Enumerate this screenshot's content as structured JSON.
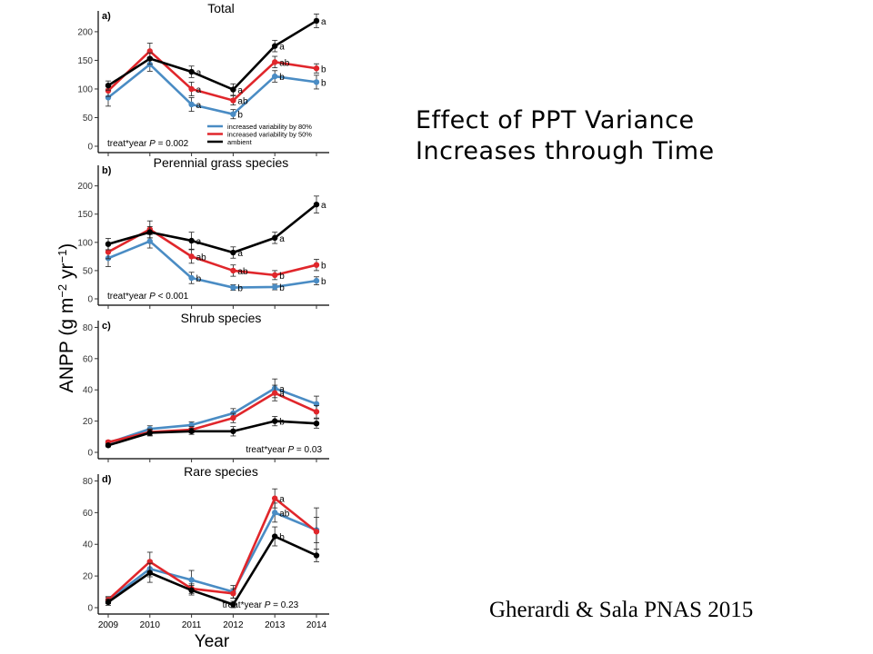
{
  "slide": {
    "title_lines": [
      "Effect of PPT Variance",
      "Increases through Time"
    ],
    "citation": "Gherardi & Sala PNAS 2015"
  },
  "figure": {
    "ylabel": "ANPP (g m",
    "ylabel_sup1": "−2",
    "ylabel_mid": " yr",
    "ylabel_sup2": "−1",
    "ylabel_end": ")",
    "xlabel": "Year"
  },
  "colors": {
    "increased_80": "#4a8cc4",
    "increased_50": "#e0262b",
    "ambient": "#000000"
  },
  "chart_data": [
    {
      "type": "line",
      "panel": "a)",
      "title": "Total",
      "x": [
        2009,
        2010,
        2011,
        2012,
        2013,
        2014
      ],
      "ylim": [
        0,
        230
      ],
      "yticks": [
        0,
        50,
        100,
        150,
        200
      ],
      "show_x_ticklabels": false,
      "stat_prefix": "treat*year ",
      "stat_p": "P",
      "stat_rest": " = 0.002",
      "stat_pos": "bottom-left",
      "legend": {
        "position": "bottom-right",
        "entries": [
          {
            "label": "increased variability by 80%",
            "color": "#4a8cc4"
          },
          {
            "label": "increased variability by 50%",
            "color": "#e0262b"
          },
          {
            "label": "ambient",
            "color": "#000000"
          }
        ]
      },
      "series": [
        {
          "key": "increased_80",
          "values": [
            85,
            143,
            73,
            56,
            122,
            112
          ],
          "err": [
            15,
            12,
            12,
            8,
            10,
            12
          ],
          "letters": [
            "",
            "",
            "a",
            "b",
            "b",
            "b"
          ]
        },
        {
          "key": "increased_50",
          "values": [
            97,
            166,
            100,
            80,
            147,
            136
          ],
          "err": [
            10,
            14,
            12,
            8,
            10,
            8
          ],
          "letters": [
            "",
            "",
            "a",
            "ab",
            "ab",
            "b"
          ]
        },
        {
          "key": "ambient",
          "values": [
            106,
            153,
            130,
            99,
            175,
            219
          ],
          "err": [
            8,
            10,
            10,
            10,
            10,
            12
          ],
          "letters": [
            "",
            "",
            "a",
            "a",
            "a",
            "a"
          ]
        }
      ]
    },
    {
      "type": "line",
      "panel": "b)",
      "title": "Perennial grass species",
      "x": [
        2009,
        2010,
        2011,
        2012,
        2013,
        2014
      ],
      "ylim": [
        0,
        230
      ],
      "yticks": [
        0,
        50,
        100,
        150,
        200
      ],
      "show_x_ticklabels": false,
      "stat_prefix": "treat*year ",
      "stat_p": "P",
      "stat_rest": " < 0.001",
      "stat_pos": "bottom-left",
      "series": [
        {
          "key": "increased_80",
          "values": [
            72,
            102,
            37,
            20,
            21,
            32
          ],
          "err": [
            15,
            12,
            10,
            5,
            5,
            7
          ],
          "letters": [
            "",
            "",
            "b",
            "b",
            "b",
            "b"
          ]
        },
        {
          "key": "increased_50",
          "values": [
            83,
            123,
            75,
            50,
            42,
            60
          ],
          "err": [
            12,
            15,
            12,
            10,
            8,
            10
          ],
          "letters": [
            "",
            "",
            "ab",
            "ab",
            "b",
            "b"
          ]
        },
        {
          "key": "ambient",
          "values": [
            97,
            118,
            103,
            82,
            108,
            167
          ],
          "err": [
            10,
            10,
            15,
            10,
            10,
            15
          ],
          "letters": [
            "",
            "",
            "a",
            "a",
            "a",
            "a"
          ]
        }
      ]
    },
    {
      "type": "line",
      "panel": "c)",
      "title": "Shrub species",
      "x": [
        2009,
        2010,
        2011,
        2012,
        2013,
        2014
      ],
      "ylim": [
        0,
        82
      ],
      "yticks": [
        0,
        20,
        40,
        60,
        80
      ],
      "show_x_ticklabels": false,
      "stat_prefix": "treat*year ",
      "stat_p": "P",
      "stat_rest": " = 0.03",
      "stat_pos": "bottom-right",
      "series": [
        {
          "key": "increased_80",
          "values": [
            6,
            15,
            17.5,
            25,
            41,
            31
          ],
          "err": [
            1,
            2,
            2,
            3,
            6,
            5
          ],
          "letters": [
            "",
            "",
            "",
            "",
            "a",
            ""
          ]
        },
        {
          "key": "increased_50",
          "values": [
            6.5,
            13,
            14.5,
            22,
            38,
            26
          ],
          "err": [
            1,
            2,
            2,
            3,
            5,
            4
          ],
          "letters": [
            "",
            "",
            "",
            "",
            "a",
            ""
          ]
        },
        {
          "key": "ambient",
          "values": [
            4.5,
            12.5,
            13.5,
            13.5,
            20,
            18.5
          ],
          "err": [
            1,
            2,
            2,
            3,
            3,
            3
          ],
          "letters": [
            "",
            "",
            "",
            "",
            "b",
            ""
          ]
        }
      ]
    },
    {
      "type": "line",
      "panel": "d)",
      "title": "Rare species",
      "x": [
        2009,
        2010,
        2011,
        2012,
        2013,
        2014
      ],
      "ylim": [
        0,
        82
      ],
      "yticks": [
        0,
        20,
        40,
        60,
        80
      ],
      "show_x_ticklabels": true,
      "stat_prefix": "treat*year ",
      "stat_p": "P",
      "stat_rest": " = 0.23",
      "stat_pos": "bottom-center",
      "series": [
        {
          "key": "increased_80",
          "values": [
            4.5,
            24.5,
            17.5,
            10,
            60,
            49
          ],
          "err": [
            2,
            5,
            6,
            4,
            6,
            8
          ],
          "letters": [
            "",
            "",
            "",
            "",
            "ab",
            ""
          ]
        },
        {
          "key": "increased_50",
          "values": [
            5,
            29,
            12,
            9,
            69,
            48
          ],
          "err": [
            2,
            6,
            3,
            3,
            6,
            15
          ],
          "letters": [
            "",
            "",
            "",
            "",
            "a",
            ""
          ]
        },
        {
          "key": "ambient",
          "values": [
            3.5,
            22,
            11,
            2,
            45,
            33
          ],
          "err": [
            2,
            6,
            3,
            2,
            6,
            4
          ],
          "letters": [
            "",
            "",
            "",
            "",
            "b",
            ""
          ]
        }
      ]
    }
  ]
}
